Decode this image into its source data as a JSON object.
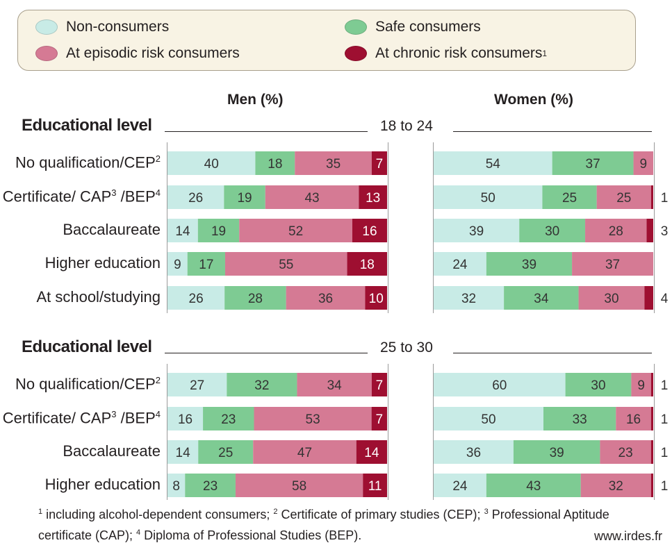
{
  "legend": {
    "items": [
      {
        "label": "Non-consumers",
        "color": "#c8ebe6"
      },
      {
        "label": "Safe consumers",
        "color": "#7ecb93"
      },
      {
        "label": "At episodic risk consumers",
        "color": "#d57a94"
      },
      {
        "label": "At chronic risk consumers",
        "sup": "1",
        "color": "#9e0f31"
      }
    ]
  },
  "headers": {
    "men": "Men (%)",
    "women": "Women (%)"
  },
  "sections": [
    {
      "title": "Educational level",
      "age": "18 to 24"
    },
    {
      "title": "Educational level",
      "age": "25 to 30"
    }
  ],
  "rows": [
    {
      "label": "No qualification/CEP",
      "sup": "2"
    },
    {
      "label": "Certificate/ CAP",
      "sup": "3",
      "label2": " /BEP",
      "sup2": "4"
    },
    {
      "label": "Baccalaureate"
    },
    {
      "label": "Higher education"
    },
    {
      "label": "At school/studying"
    },
    {
      "label": "No qualification/CEP",
      "sup": "2"
    },
    {
      "label": "Certificate/ CAP",
      "sup": "3",
      "label2": " /BEP",
      "sup2": "4"
    },
    {
      "label": "Baccalaureate"
    },
    {
      "label": "Higher education"
    }
  ],
  "chart_data": {
    "type": "bar",
    "stacked": true,
    "orientation": "horizontal",
    "unit": "%",
    "series_names": [
      "Non-consumers",
      "Safe consumers",
      "At episodic risk consumers",
      "At chronic risk consumers"
    ],
    "groups": [
      {
        "age": "18 to 24",
        "categories": [
          "No qualification/CEP",
          "Certificate/ CAP /BEP",
          "Baccalaureate",
          "Higher education",
          "At school/studying"
        ],
        "men": [
          [
            40,
            18,
            35,
            7
          ],
          [
            26,
            19,
            43,
            13
          ],
          [
            14,
            19,
            52,
            16
          ],
          [
            9,
            17,
            55,
            18
          ],
          [
            26,
            28,
            36,
            10
          ]
        ],
        "women": [
          [
            54,
            37,
            9,
            0
          ],
          [
            50,
            25,
            25,
            1
          ],
          [
            39,
            30,
            28,
            3
          ],
          [
            24,
            39,
            37,
            0
          ],
          [
            32,
            34,
            30,
            4
          ]
        ],
        "women_chronic_labels": [
          "",
          "1",
          "3",
          "",
          "4"
        ]
      },
      {
        "age": "25 to 30",
        "categories": [
          "No qualification/CEP",
          "Certificate/ CAP /BEP",
          "Baccalaureate",
          "Higher education"
        ],
        "men": [
          [
            27,
            32,
            34,
            7
          ],
          [
            16,
            23,
            53,
            7
          ],
          [
            14,
            25,
            47,
            14
          ],
          [
            8,
            23,
            58,
            11
          ]
        ],
        "women": [
          [
            60,
            30,
            9,
            1
          ],
          [
            50,
            33,
            16,
            1
          ],
          [
            36,
            39,
            23,
            1
          ],
          [
            24,
            43,
            32,
            1
          ]
        ],
        "women_chronic_labels": [
          "1",
          "1",
          "1",
          "1"
        ]
      }
    ],
    "xlim": [
      0,
      100
    ]
  },
  "footnote": {
    "n1": "1",
    "t1": " including alcohol-dependent consumers; ",
    "n2": "2",
    "t2": " Certificate of primary studies (CEP); ",
    "n3": "3",
    "t3": " Professional Aptitude certificate (CAP); ",
    "n4": "4",
    "t4": " Diploma of Professional Studies (BEP)."
  },
  "source": "www.irdes.fr"
}
